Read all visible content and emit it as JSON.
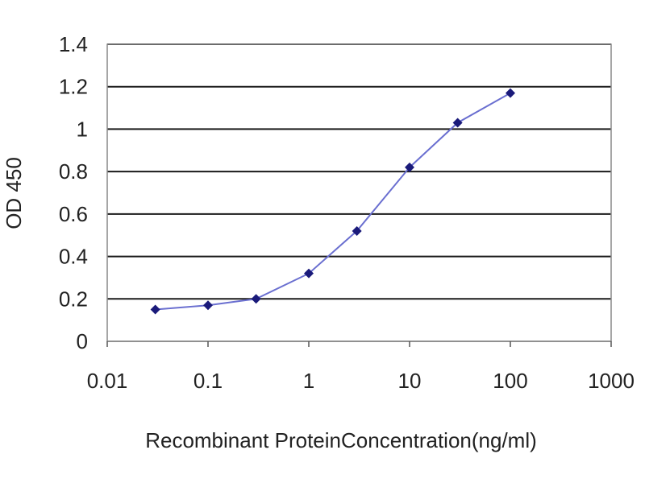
{
  "chart_data": {
    "type": "line",
    "title": "",
    "xlabel": "Recombinant ProteinConcentration(ng/ml)",
    "ylabel": "OD 450",
    "x_scale": "log",
    "xlim": [
      0.01,
      1000
    ],
    "ylim": [
      0,
      1.4
    ],
    "x_ticks": [
      "0.01",
      "0.1",
      "1",
      "10",
      "100",
      "1000"
    ],
    "y_ticks": [
      "0",
      "0.2",
      "0.4",
      "0.6",
      "0.8",
      "1",
      "1.2",
      "1.4"
    ],
    "grid": "horizontal",
    "legend": "none",
    "series": [
      {
        "x": [
          0.03,
          0.1,
          0.3,
          1,
          3,
          10,
          30,
          100
        ],
        "y": [
          0.15,
          0.17,
          0.2,
          0.32,
          0.52,
          0.82,
          1.03,
          1.17
        ]
      }
    ],
    "colors": {
      "line": "#6a6fd0",
      "marker": "#1a1a7a",
      "grid": "#1a1a1a",
      "plot_border": "#888888"
    }
  }
}
